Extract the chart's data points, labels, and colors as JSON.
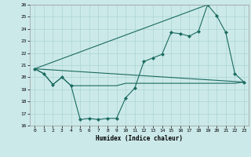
{
  "title": "",
  "xlabel": "Humidex (Indice chaleur)",
  "background_color": "#cce9e9",
  "grid_color": "#aad4d4",
  "line_color": "#1a6b60",
  "xlim": [
    -0.5,
    23.5
  ],
  "ylim": [
    16,
    26
  ],
  "xticks": [
    0,
    1,
    2,
    3,
    4,
    5,
    6,
    7,
    8,
    9,
    10,
    11,
    12,
    13,
    14,
    15,
    16,
    17,
    18,
    19,
    20,
    21,
    22,
    23
  ],
  "yticks": [
    16,
    17,
    18,
    19,
    20,
    21,
    22,
    23,
    24,
    25,
    26
  ],
  "series1_x": [
    0,
    1,
    2,
    3,
    4,
    5,
    6,
    7,
    8,
    9,
    10,
    11,
    12,
    13,
    14,
    15,
    16,
    17,
    18,
    19,
    20,
    21,
    22,
    23
  ],
  "series1_y": [
    20.7,
    20.3,
    19.4,
    20.0,
    19.3,
    16.5,
    16.6,
    16.5,
    16.6,
    16.6,
    18.3,
    19.1,
    21.3,
    21.6,
    21.9,
    23.7,
    23.6,
    23.4,
    23.8,
    26.0,
    25.1,
    23.7,
    20.3,
    19.6
  ],
  "series2_x": [
    0,
    1,
    2,
    3,
    4,
    5,
    6,
    7,
    8,
    9,
    10,
    11,
    12,
    13,
    14,
    15,
    16,
    17,
    18,
    19,
    20,
    21,
    22,
    23
  ],
  "series2_y": [
    20.7,
    20.3,
    19.4,
    20.0,
    19.3,
    19.3,
    19.3,
    19.3,
    19.3,
    19.3,
    19.5,
    19.5,
    19.5,
    19.5,
    19.5,
    19.5,
    19.5,
    19.5,
    19.5,
    19.5,
    19.5,
    19.5,
    19.5,
    19.6
  ],
  "series3_x": [
    0,
    23
  ],
  "series3_y": [
    20.7,
    19.6
  ],
  "series4_x": [
    0,
    19
  ],
  "series4_y": [
    20.7,
    26.0
  ]
}
